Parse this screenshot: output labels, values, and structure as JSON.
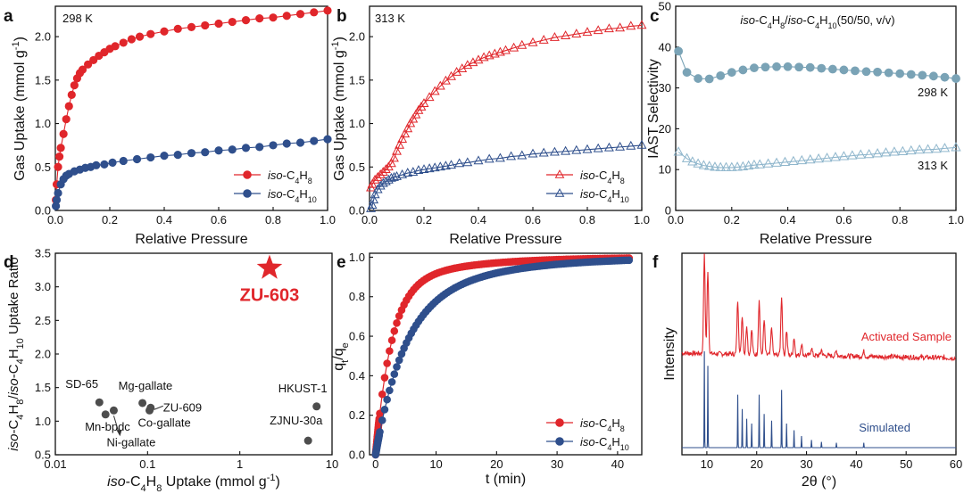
{
  "colors": {
    "red": "#e0262b",
    "blue": "#2f4f8c",
    "teal": "#7aa3b6",
    "lightblue": "#8fb6cc"
  },
  "chart_data": [
    {
      "id": "a",
      "type": "scatter",
      "letter": "a",
      "temp_label": "298 K",
      "xlabel": "Relative Pressure",
      "ylabel_base": "Gas Uptake (mmol g",
      "ylabel_sup": "-1",
      "ylabel_close": ")",
      "xlim": [
        0,
        1
      ],
      "ylim": [
        0,
        2.35
      ],
      "xticks": [
        0,
        0.2,
        0.4,
        0.6,
        0.8,
        1
      ],
      "xtick_labels": [
        "0.0",
        "0.2",
        "0.4",
        "0.6",
        "0.8",
        "1.0"
      ],
      "yticks": [
        0,
        0.5,
        1,
        1.5,
        2
      ],
      "ytick_labels": [
        "0.0",
        "0.5",
        "1.0",
        "1.5",
        "2.0"
      ],
      "legend": [
        {
          "pre": "iso",
          "text": "-C",
          "sub1": "4",
          "mid": "H",
          "sub2": "8",
          "color": "red",
          "marker": "circle"
        },
        {
          "pre": "iso",
          "text": "-C",
          "sub1": "4",
          "mid": "H",
          "sub2": "10",
          "color": "blue",
          "marker": "circle"
        }
      ],
      "series": [
        {
          "name": "iso-C4H8",
          "color": "red",
          "marker": "circle",
          "fill": true,
          "x": [
            0.002,
            0.005,
            0.01,
            0.015,
            0.02,
            0.03,
            0.04,
            0.05,
            0.06,
            0.07,
            0.08,
            0.09,
            0.1,
            0.12,
            0.14,
            0.16,
            0.18,
            0.2,
            0.22,
            0.25,
            0.28,
            0.31,
            0.35,
            0.4,
            0.45,
            0.5,
            0.55,
            0.6,
            0.65,
            0.7,
            0.75,
            0.8,
            0.85,
            0.9,
            0.95,
            1.0
          ],
          "y": [
            0.12,
            0.3,
            0.5,
            0.62,
            0.72,
            0.88,
            1.05,
            1.2,
            1.33,
            1.44,
            1.52,
            1.58,
            1.62,
            1.68,
            1.73,
            1.78,
            1.82,
            1.86,
            1.89,
            1.93,
            1.97,
            2.0,
            2.03,
            2.06,
            2.09,
            2.11,
            2.13,
            2.15,
            2.17,
            2.19,
            2.21,
            2.22,
            2.24,
            2.26,
            2.28,
            2.3
          ]
        },
        {
          "name": "iso-C4H10",
          "color": "blue",
          "marker": "circle",
          "fill": true,
          "x": [
            0.002,
            0.005,
            0.01,
            0.02,
            0.03,
            0.04,
            0.05,
            0.07,
            0.09,
            0.11,
            0.13,
            0.15,
            0.18,
            0.21,
            0.25,
            0.3,
            0.35,
            0.4,
            0.45,
            0.5,
            0.55,
            0.6,
            0.65,
            0.7,
            0.75,
            0.8,
            0.85,
            0.9,
            0.95,
            1.0
          ],
          "y": [
            0.05,
            0.12,
            0.2,
            0.3,
            0.36,
            0.4,
            0.42,
            0.45,
            0.47,
            0.49,
            0.5,
            0.52,
            0.53,
            0.55,
            0.57,
            0.59,
            0.61,
            0.63,
            0.64,
            0.66,
            0.67,
            0.69,
            0.7,
            0.72,
            0.73,
            0.75,
            0.77,
            0.78,
            0.8,
            0.82
          ]
        }
      ]
    },
    {
      "id": "b",
      "type": "scatter",
      "letter": "b",
      "temp_label": "313 K",
      "xlabel": "Relative Pressure",
      "ylabel_base": "Gas Uptake (mmol g",
      "ylabel_sup": "-1",
      "ylabel_close": ")",
      "xlim": [
        0,
        1
      ],
      "ylim": [
        0,
        2.35
      ],
      "xticks": [
        0,
        0.2,
        0.4,
        0.6,
        0.8,
        1
      ],
      "xtick_labels": [
        "0.0",
        "0.2",
        "0.4",
        "0.6",
        "0.8",
        "1.0"
      ],
      "yticks": [
        0,
        0.5,
        1,
        1.5,
        2
      ],
      "ytick_labels": [
        "0.0",
        "0.5",
        "1.0",
        "1.5",
        "2.0"
      ],
      "legend": [
        {
          "pre": "iso",
          "text": "-C",
          "sub1": "4",
          "mid": "H",
          "sub2": "8",
          "color": "red",
          "marker": "triangle"
        },
        {
          "pre": "iso",
          "text": "-C",
          "sub1": "4",
          "mid": "H",
          "sub2": "10",
          "color": "blue",
          "marker": "triangle"
        }
      ],
      "series": [
        {
          "name": "iso-C4H8",
          "color": "red",
          "marker": "triangle",
          "fill": false,
          "x": [
            0.005,
            0.01,
            0.02,
            0.03,
            0.04,
            0.05,
            0.06,
            0.07,
            0.08,
            0.09,
            0.1,
            0.11,
            0.12,
            0.13,
            0.14,
            0.15,
            0.16,
            0.17,
            0.18,
            0.19,
            0.2,
            0.22,
            0.24,
            0.26,
            0.28,
            0.3,
            0.32,
            0.34,
            0.36,
            0.38,
            0.4,
            0.42,
            0.44,
            0.46,
            0.48,
            0.5,
            0.53,
            0.56,
            0.6,
            0.64,
            0.68,
            0.72,
            0.76,
            0.8,
            0.84,
            0.88,
            0.92,
            0.96,
            1.0
          ],
          "y": [
            0.26,
            0.3,
            0.35,
            0.38,
            0.41,
            0.44,
            0.47,
            0.5,
            0.54,
            0.6,
            0.68,
            0.75,
            0.82,
            0.88,
            0.94,
            1.0,
            1.05,
            1.1,
            1.15,
            1.19,
            1.23,
            1.3,
            1.37,
            1.43,
            1.49,
            1.54,
            1.59,
            1.63,
            1.67,
            1.7,
            1.73,
            1.76,
            1.78,
            1.8,
            1.82,
            1.84,
            1.87,
            1.9,
            1.93,
            1.96,
            1.99,
            2.01,
            2.03,
            2.05,
            2.07,
            2.09,
            2.1,
            2.12,
            2.13
          ]
        },
        {
          "name": "iso-C4H10",
          "color": "blue",
          "marker": "triangle",
          "fill": false,
          "x": [
            0.005,
            0.01,
            0.015,
            0.02,
            0.03,
            0.04,
            0.05,
            0.06,
            0.07,
            0.08,
            0.09,
            0.1,
            0.12,
            0.14,
            0.16,
            0.18,
            0.2,
            0.22,
            0.24,
            0.26,
            0.28,
            0.3,
            0.33,
            0.36,
            0.4,
            0.44,
            0.48,
            0.52,
            0.56,
            0.6,
            0.64,
            0.68,
            0.72,
            0.76,
            0.8,
            0.84,
            0.88,
            0.92,
            0.96,
            1.0
          ],
          "y": [
            0.02,
            0.06,
            0.12,
            0.18,
            0.24,
            0.28,
            0.31,
            0.33,
            0.35,
            0.37,
            0.38,
            0.39,
            0.41,
            0.43,
            0.44,
            0.46,
            0.47,
            0.48,
            0.49,
            0.5,
            0.51,
            0.52,
            0.54,
            0.55,
            0.57,
            0.59,
            0.6,
            0.62,
            0.63,
            0.65,
            0.66,
            0.67,
            0.68,
            0.69,
            0.7,
            0.71,
            0.72,
            0.73,
            0.74,
            0.75
          ]
        }
      ]
    },
    {
      "id": "c",
      "type": "scatter",
      "letter": "c",
      "title": {
        "pre1": "iso",
        "t1": "-C",
        "s1": "4",
        "t2": "H",
        "s2": "8",
        "t3": "/",
        "pre2": "iso",
        "t4": "-C",
        "s3": "4",
        "t5": "H",
        "s4": "10",
        "t6": "(50/50, v/v)"
      },
      "xlabel": "Relative Pressure",
      "ylabel": "IAST Selectivity",
      "xlim": [
        0,
        1
      ],
      "ylim": [
        0,
        50
      ],
      "xticks": [
        0,
        0.2,
        0.4,
        0.6,
        0.8,
        1
      ],
      "xtick_labels": [
        "0.0",
        "0.2",
        "0.4",
        "0.6",
        "0.8",
        "1.0"
      ],
      "yticks": [
        0,
        10,
        20,
        30,
        40,
        50
      ],
      "ytick_labels": [
        "0",
        "10",
        "20",
        "30",
        "40",
        "50"
      ],
      "annotations": [
        "298 K",
        "313 K"
      ],
      "series": [
        {
          "name": "298 K",
          "color": "teal",
          "marker": "circle",
          "fill": true,
          "x": [
            0.01,
            0.04,
            0.08,
            0.12,
            0.16,
            0.2,
            0.24,
            0.28,
            0.32,
            0.36,
            0.4,
            0.44,
            0.48,
            0.52,
            0.56,
            0.6,
            0.64,
            0.68,
            0.72,
            0.76,
            0.8,
            0.84,
            0.88,
            0.92,
            0.96,
            1.0
          ],
          "y": [
            39,
            33.8,
            32.3,
            32.2,
            33,
            33.8,
            34.4,
            34.9,
            35.1,
            35.2,
            35.2,
            35.1,
            35.0,
            34.8,
            34.6,
            34.4,
            34.2,
            34.0,
            33.9,
            33.7,
            33.5,
            33.3,
            33.1,
            32.9,
            32.6,
            32.3
          ]
        },
        {
          "name": "313 K",
          "color": "lightblue",
          "marker": "triangle",
          "fill": false,
          "x": [
            0.01,
            0.04,
            0.06,
            0.08,
            0.1,
            0.12,
            0.14,
            0.16,
            0.18,
            0.2,
            0.22,
            0.24,
            0.26,
            0.28,
            0.3,
            0.33,
            0.36,
            0.39,
            0.42,
            0.45,
            0.48,
            0.51,
            0.54,
            0.57,
            0.6,
            0.63,
            0.66,
            0.69,
            0.72,
            0.75,
            0.78,
            0.81,
            0.84,
            0.87,
            0.9,
            0.93,
            0.96,
            1.0
          ],
          "y": [
            14.3,
            12.7,
            11.9,
            11.4,
            11.0,
            10.8,
            10.6,
            10.5,
            10.5,
            10.5,
            10.6,
            10.7,
            10.9,
            11.1,
            11.2,
            11.4,
            11.6,
            11.8,
            12.0,
            12.2,
            12.4,
            12.6,
            12.8,
            13.0,
            13.2,
            13.4,
            13.6,
            13.7,
            13.9,
            14.1,
            14.3,
            14.4,
            14.6,
            14.8,
            14.9,
            15.0,
            15.2,
            15.4
          ]
        }
      ]
    },
    {
      "id": "d",
      "type": "scatter",
      "letter": "d",
      "xlabel_pre": "iso",
      "xlabel_text": "-C",
      "xlabel_sub1": "4",
      "xlabel_mid": "H",
      "xlabel_sub2": "8",
      "xlabel_end": " Uptake (mmol g",
      "xlabel_sup": "-1",
      "xlabel_close": ")",
      "ylabel": {
        "pre1": "iso",
        "t1": "-C",
        "s1": "4",
        "t2": "H",
        "s2": "8",
        "t3": "/",
        "pre2": "iso",
        "t4": "-C",
        "s3": "4",
        "t5": "H",
        "s4": "10",
        "t6": " Uptake Ratio"
      },
      "xscale": "log",
      "xlim": [
        0.01,
        10
      ],
      "ylim": [
        0.5,
        3.5
      ],
      "xticks": [
        0.01,
        0.1,
        1,
        10
      ],
      "xtick_labels": [
        "0.01",
        "0.1",
        "1",
        "10"
      ],
      "yticks": [
        0.5,
        1,
        1.5,
        2,
        2.5,
        3,
        3.5
      ],
      "ytick_labels": [
        "0.5",
        "1.0",
        "1.5",
        "2.0",
        "2.5",
        "3.0",
        "3.5"
      ],
      "points": [
        {
          "label": "SD-65",
          "x": 0.03,
          "y": 1.28
        },
        {
          "label": "Mn-bpdc",
          "x": 0.035,
          "y": 1.1
        },
        {
          "label": "Ni-gallate",
          "x": 0.043,
          "y": 1.16
        },
        {
          "label": "Mg-gallate",
          "x": 0.088,
          "y": 1.27
        },
        {
          "label": "Co-gallate",
          "x": 0.105,
          "y": 1.16
        },
        {
          "label": "ZU-609",
          "x": 0.108,
          "y": 1.2
        },
        {
          "label": "HKUST-1",
          "x": 6.8,
          "y": 1.22
        },
        {
          "label": "ZJNU-30a",
          "x": 5.5,
          "y": 0.71
        }
      ],
      "highlight": {
        "label": "ZU-603",
        "x": 2.1,
        "y": 3.28
      }
    },
    {
      "id": "e",
      "type": "line",
      "letter": "e",
      "xlabel": "t (min)",
      "ylabel_q": "q",
      "ylabel_t": "t",
      "ylabel_slash": "/q",
      "ylabel_e": "e",
      "xlim": [
        -1,
        44
      ],
      "ylim": [
        0,
        1.02
      ],
      "xticks": [
        0,
        10,
        20,
        30,
        40
      ],
      "xtick_labels": [
        "0",
        "10",
        "20",
        "30",
        "40"
      ],
      "yticks": [
        0,
        0.2,
        0.4,
        0.6,
        0.8,
        1
      ],
      "ytick_labels": [
        "0.0",
        "0.2",
        "0.4",
        "0.6",
        "0.8",
        "1.0"
      ],
      "legend": [
        {
          "pre": "iso",
          "text": "-C",
          "sub1": "4",
          "mid": "H",
          "sub2": "8",
          "color": "red",
          "marker": "circle"
        },
        {
          "pre": "iso",
          "text": "-C",
          "sub1": "4",
          "mid": "H",
          "sub2": "10",
          "color": "blue",
          "marker": "circle"
        }
      ],
      "series": [
        {
          "name": "iso-C4H8",
          "color": "red",
          "tau": 2.6,
          "k": 0.85,
          "tau2": 12
        },
        {
          "name": "iso-C4H10",
          "color": "blue",
          "tau": 4.5,
          "k": 0.7,
          "tau2": 14
        }
      ]
    },
    {
      "id": "f",
      "type": "line",
      "letter": "f",
      "xlabel": "2θ (°)",
      "ylabel": "Intensity",
      "xlim": [
        5,
        60
      ],
      "xticks": [
        10,
        20,
        30,
        40,
        50,
        60
      ],
      "xtick_labels": [
        "10",
        "20",
        "30",
        "40",
        "50",
        "60"
      ],
      "series_labels": [
        "Activated Sample",
        "Simulated"
      ],
      "peaks": [
        [
          9.5,
          1.0
        ],
        [
          10.2,
          0.85
        ],
        [
          16.2,
          0.55
        ],
        [
          17.1,
          0.4
        ],
        [
          18.0,
          0.3
        ],
        [
          19.0,
          0.25
        ],
        [
          20.5,
          0.55
        ],
        [
          21.5,
          0.35
        ],
        [
          23.0,
          0.28
        ],
        [
          25.0,
          0.6
        ],
        [
          26.0,
          0.25
        ],
        [
          27.5,
          0.18
        ],
        [
          29.0,
          0.12
        ],
        [
          31.0,
          0.08
        ],
        [
          33.0,
          0.06
        ],
        [
          36.0,
          0.05
        ],
        [
          41.5,
          0.05
        ]
      ]
    }
  ]
}
